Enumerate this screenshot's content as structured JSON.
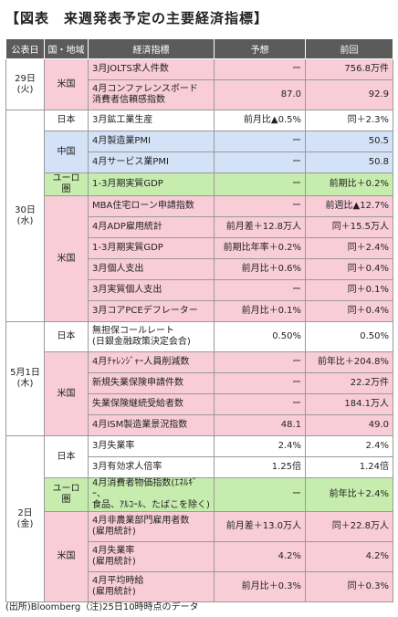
{
  "title": "【図表　来週発表予定の主要経済指標】",
  "headers": [
    "公表日",
    "国・地域",
    "経済指標",
    "予想",
    "前回"
  ],
  "note": "(出所)Bloomberg（注)25日10時時点のデータ",
  "colors": {
    "header": "#5b5b5b",
    "us": "#f8cdd8",
    "china": "#d4e2f7",
    "euro": "#c7edae",
    "japan": "#ffffff"
  },
  "groups": [
    {
      "date": "29日\n(火)",
      "countries": [
        {
          "name": "米国",
          "color": "pink",
          "rows": [
            {
              "ind": "3月JOLTS求人件数",
              "fc": "ー",
              "prev": "756.8万件"
            },
            {
              "ind": "4月コンファレンスボード\n消費者信頼感指数",
              "fc": "87.0",
              "prev": "92.9",
              "tall": true
            }
          ]
        }
      ]
    },
    {
      "date": "30日\n(水)",
      "countries": [
        {
          "name": "日本",
          "color": "white",
          "rows": [
            {
              "ind": "3月鉱工業生産",
              "fc": "前月比▲0.5%",
              "prev": "同＋2.3%"
            }
          ]
        },
        {
          "name": "中国",
          "color": "blue",
          "rows": [
            {
              "ind": "4月製造業PMI",
              "fc": "ー",
              "prev": "50.5"
            },
            {
              "ind": "4月サービス業PMI",
              "fc": "ー",
              "prev": "50.8"
            }
          ]
        },
        {
          "name": "ユーロ圏",
          "color": "green",
          "rows": [
            {
              "ind": "1-3月期実質GDP",
              "fc": "ー",
              "prev": "前期比＋0.2%"
            }
          ]
        },
        {
          "name": "米国",
          "color": "pink",
          "rows": [
            {
              "ind": "MBA住宅ローン申請指数",
              "fc": "ー",
              "prev": "前週比▲12.7%"
            },
            {
              "ind": "4月ADP雇用統計",
              "fc": "前月差＋12.8万人",
              "prev": "同＋15.5万人"
            },
            {
              "ind": "1-3月期実質GDP",
              "fc": "前期比年率＋0.2%",
              "prev": "同＋2.4%"
            },
            {
              "ind": "3月個人支出",
              "fc": "前月比＋0.6%",
              "prev": "同＋0.4%"
            },
            {
              "ind": "3月実質個人支出",
              "fc": "ー",
              "prev": "同＋0.1%"
            },
            {
              "ind": "3月コアPCEデフレーター",
              "fc": "前月比＋0.1%",
              "prev": "同＋0.4%"
            }
          ]
        }
      ]
    },
    {
      "date": "5月1日\n(木)",
      "countries": [
        {
          "name": "日本",
          "color": "white",
          "rows": [
            {
              "ind": "無担保コールレート\n(日銀金融政策決定会合)",
              "fc": "0.50%",
              "prev": "0.50%",
              "tall": true
            }
          ]
        },
        {
          "name": "米国",
          "color": "pink",
          "rows": [
            {
              "ind": "4月ﾁｬﾚﾝｼﾞｬｰ人員削減数",
              "fc": "ー",
              "prev": "前年比＋204.8%"
            },
            {
              "ind": "新規失業保険申請件数",
              "fc": "ー",
              "prev": "22.2万件"
            },
            {
              "ind": "失業保険継続受給者数",
              "fc": "ー",
              "prev": "184.1万人"
            },
            {
              "ind": "4月ISM製造業景況指数",
              "fc": "48.1",
              "prev": "49.0"
            }
          ]
        }
      ]
    },
    {
      "date": "2日\n(金)",
      "countries": [
        {
          "name": "日本",
          "color": "white",
          "rows": [
            {
              "ind": "3月失業率",
              "fc": "2.4%",
              "prev": "2.4%"
            },
            {
              "ind": "3月有効求人倍率",
              "fc": "1.25倍",
              "prev": "1.24倍"
            }
          ]
        },
        {
          "name": "ユーロ圏",
          "color": "green",
          "rows": [
            {
              "ind": "4月消費者物価指数(ｴﾈﾙｷﾞｰ、\n食品、ｱﾙｺｰﾙ、たばこを除く)",
              "fc": "ー",
              "prev": "前年比＋2.4%",
              "tall": true
            }
          ]
        },
        {
          "name": "米国",
          "color": "pink",
          "rows": [
            {
              "ind": "4月非農業部門雇用者数\n(雇用統計)",
              "fc": "前月差＋13.0万人",
              "prev": "同＋22.8万人",
              "tall": true
            },
            {
              "ind": "4月失業率\n(雇用統計)",
              "fc": "4.2%",
              "prev": "4.2%",
              "tall": true
            },
            {
              "ind": "4月平均時給\n(雇用統計)",
              "fc": "前月比＋0.3%",
              "prev": "同＋0.3%",
              "tall": true
            }
          ]
        }
      ]
    }
  ]
}
